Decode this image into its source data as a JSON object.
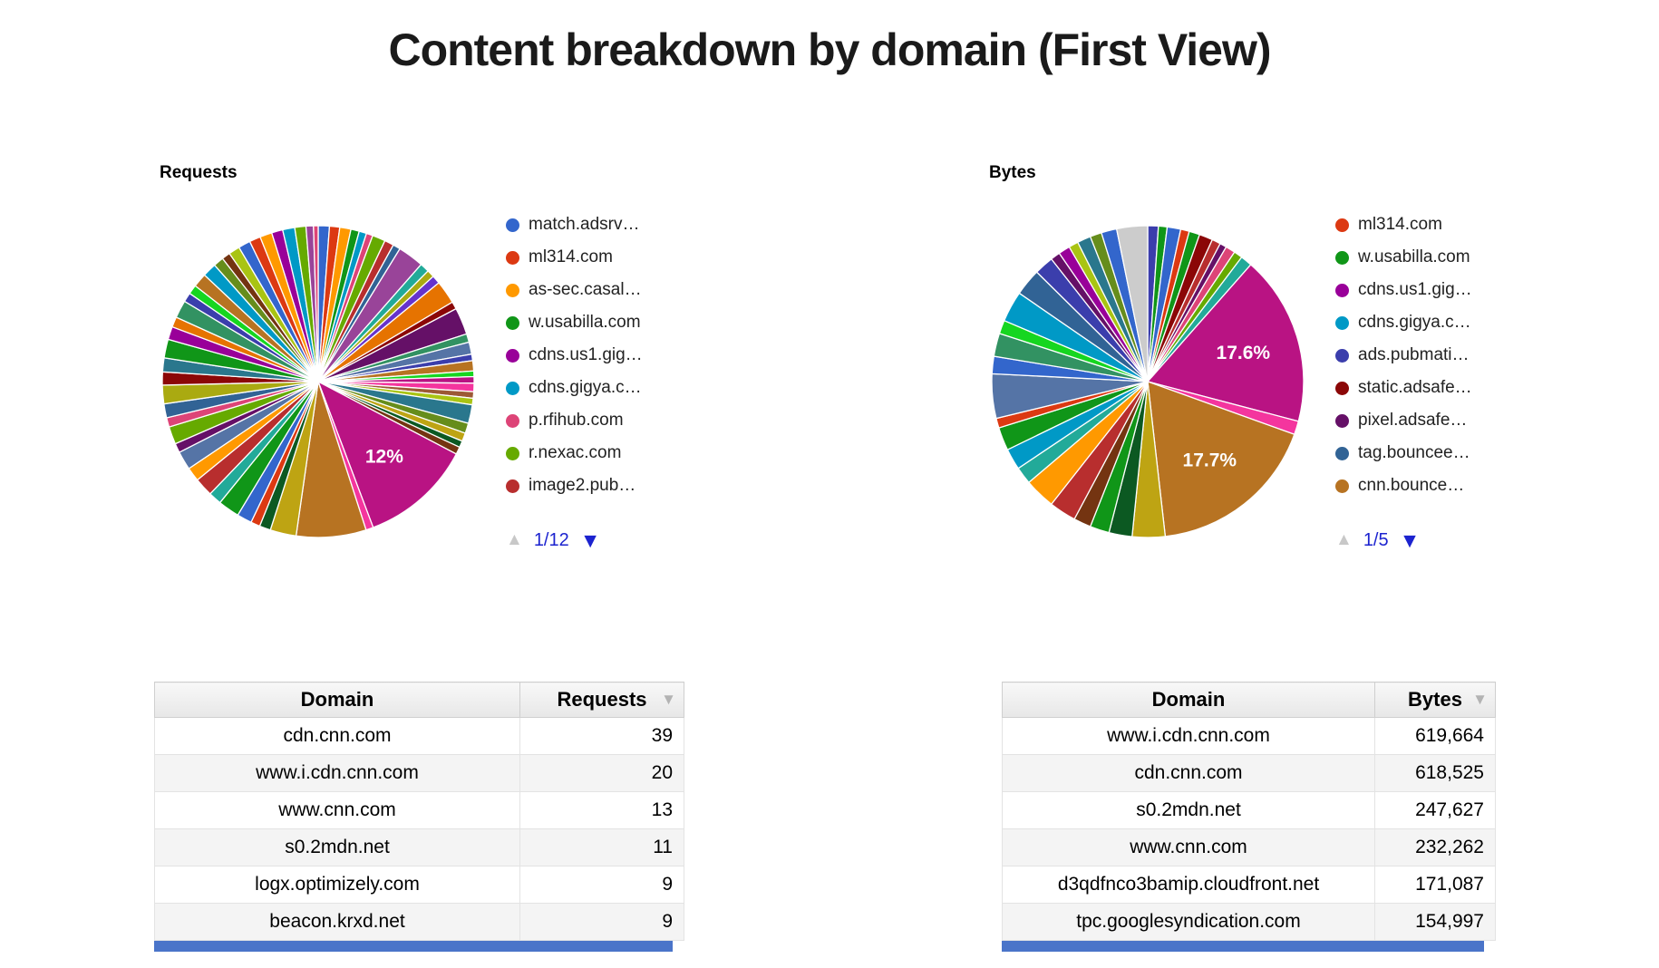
{
  "page": {
    "title": "Content breakdown by domain (First View)"
  },
  "icons": {
    "pager_up": "▲",
    "pager_down": "▼",
    "sort_desc": "▼"
  },
  "colors": {
    "pager_link": "#1c23cf",
    "pager_disabled": "#c8c8c8",
    "partial_row": "#4a74c9",
    "title_text": "#1a1a1a"
  },
  "chart_data": [
    {
      "type": "pie",
      "title": "Requests",
      "legend_position": "right",
      "legend_page": "1/12",
      "legend_entries": [
        {
          "label": "match.adsrv…",
          "color": "#3366cc"
        },
        {
          "label": "ml314.com",
          "color": "#dc3912"
        },
        {
          "label": "as-sec.casal…",
          "color": "#ff9900"
        },
        {
          "label": "w.usabilla.com",
          "color": "#109618"
        },
        {
          "label": "cdns.us1.gig…",
          "color": "#990099"
        },
        {
          "label": "cdns.gigya.c…",
          "color": "#0099c6"
        },
        {
          "label": "p.rfihub.com",
          "color": "#dd4477"
        },
        {
          "label": "r.nexac.com",
          "color": "#66aa00"
        },
        {
          "label": "image2.pub…",
          "color": "#b82e2e"
        }
      ],
      "labeled_values": [
        {
          "label": "12%",
          "value": 12
        }
      ],
      "slices": [
        {
          "v": 1.2,
          "c": "#3366cc"
        },
        {
          "v": 1.1,
          "c": "#dc3912"
        },
        {
          "v": 1.2,
          "c": "#ff9900"
        },
        {
          "v": 0.9,
          "c": "#109618"
        },
        {
          "v": 0.8,
          "c": "#0099c6"
        },
        {
          "v": 0.7,
          "c": "#dd4477"
        },
        {
          "v": 1.4,
          "c": "#66aa00"
        },
        {
          "v": 1.0,
          "c": "#b82e2e"
        },
        {
          "v": 0.8,
          "c": "#316395"
        },
        {
          "v": 2.8,
          "c": "#994499"
        },
        {
          "v": 1.0,
          "c": "#22aa99"
        },
        {
          "v": 0.8,
          "c": "#aaaa11"
        },
        {
          "v": 0.9,
          "c": "#6633cc"
        },
        {
          "v": 2.5,
          "c": "#e67300"
        },
        {
          "v": 0.8,
          "c": "#8b0707"
        },
        {
          "v": 2.9,
          "c": "#651067"
        },
        {
          "v": 0.9,
          "c": "#329262"
        },
        {
          "v": 1.3,
          "c": "#5574a6"
        },
        {
          "v": 0.7,
          "c": "#3b3eac"
        },
        {
          "v": 1.1,
          "c": "#b77322"
        },
        {
          "v": 0.6,
          "c": "#16d620"
        },
        {
          "v": 0.7,
          "c": "#b91383"
        },
        {
          "v": 0.9,
          "c": "#f4359e"
        },
        {
          "v": 0.7,
          "c": "#9c5935"
        },
        {
          "v": 0.7,
          "c": "#a9c413"
        },
        {
          "v": 2.0,
          "c": "#2a778d"
        },
        {
          "v": 1.1,
          "c": "#668d1c"
        },
        {
          "v": 0.9,
          "c": "#bea413"
        },
        {
          "v": 0.7,
          "c": "#0c5922"
        },
        {
          "v": 0.8,
          "c": "#743411"
        },
        {
          "v": 12,
          "c": "#b91383",
          "l": "12%"
        },
        {
          "v": 0.8,
          "c": "#f4359e"
        },
        {
          "v": 7.5,
          "c": "#b77322"
        },
        {
          "v": 2.8,
          "c": "#bea413"
        },
        {
          "v": 1.2,
          "c": "#0c5922"
        },
        {
          "v": 1.0,
          "c": "#dc3912"
        },
        {
          "v": 1.6,
          "c": "#3366cc"
        },
        {
          "v": 2.3,
          "c": "#109618"
        },
        {
          "v": 1.4,
          "c": "#22aa99"
        },
        {
          "v": 2.0,
          "c": "#b82e2e"
        },
        {
          "v": 1.5,
          "c": "#ff9900"
        },
        {
          "v": 2.0,
          "c": "#5574a6"
        },
        {
          "v": 1.0,
          "c": "#651067"
        },
        {
          "v": 1.9,
          "c": "#66aa00"
        },
        {
          "v": 1.0,
          "c": "#dd4477"
        },
        {
          "v": 1.5,
          "c": "#316395"
        },
        {
          "v": 2.0,
          "c": "#aaaa11"
        },
        {
          "v": 1.4,
          "c": "#8b0707"
        },
        {
          "v": 1.5,
          "c": "#2a778d"
        },
        {
          "v": 2.0,
          "c": "#109618"
        },
        {
          "v": 1.4,
          "c": "#990099"
        },
        {
          "v": 1.1,
          "c": "#e67300"
        },
        {
          "v": 1.9,
          "c": "#329262"
        },
        {
          "v": 1.0,
          "c": "#3b3eac"
        },
        {
          "v": 1.0,
          "c": "#16d620"
        },
        {
          "v": 1.5,
          "c": "#b77322"
        },
        {
          "v": 1.5,
          "c": "#0099c6"
        },
        {
          "v": 1.1,
          "c": "#668d1c"
        },
        {
          "v": 0.9,
          "c": "#743411"
        },
        {
          "v": 1.2,
          "c": "#a9c413"
        },
        {
          "v": 1.3,
          "c": "#3366cc"
        },
        {
          "v": 1.2,
          "c": "#dc3912"
        },
        {
          "v": 1.3,
          "c": "#ff9900"
        },
        {
          "v": 1.2,
          "c": "#990099"
        },
        {
          "v": 1.3,
          "c": "#0099c6"
        },
        {
          "v": 1.2,
          "c": "#66aa00"
        },
        {
          "v": 0.8,
          "c": "#994499"
        },
        {
          "v": 0.5,
          "c": "#dd4477"
        }
      ]
    },
    {
      "type": "pie",
      "title": "Bytes",
      "legend_position": "right",
      "legend_page": "1/5",
      "legend_entries": [
        {
          "label": "ml314.com",
          "color": "#dc3912"
        },
        {
          "label": "w.usabilla.com",
          "color": "#109618"
        },
        {
          "label": "cdns.us1.gig…",
          "color": "#990099"
        },
        {
          "label": "cdns.gigya.c…",
          "color": "#0099c6"
        },
        {
          "label": "ads.pubmati…",
          "color": "#3b3eac"
        },
        {
          "label": "static.adsafe…",
          "color": "#8b0707"
        },
        {
          "label": "pixel.adsafe…",
          "color": "#651067"
        },
        {
          "label": "tag.bouncee…",
          "color": "#316395"
        },
        {
          "label": "cnn.bounce…",
          "color": "#b77322"
        }
      ],
      "labeled_values": [
        {
          "label": "17.6%",
          "value": 17.6
        },
        {
          "label": "17.7%",
          "value": 17.7
        }
      ],
      "slices": [
        {
          "v": 1.1,
          "c": "#3b3eac"
        },
        {
          "v": 0.9,
          "c": "#109618"
        },
        {
          "v": 1.4,
          "c": "#3366cc"
        },
        {
          "v": 0.9,
          "c": "#dc3912"
        },
        {
          "v": 1.1,
          "c": "#109618"
        },
        {
          "v": 1.4,
          "c": "#8b0707"
        },
        {
          "v": 0.9,
          "c": "#b82e2e"
        },
        {
          "v": 0.7,
          "c": "#651067"
        },
        {
          "v": 1.0,
          "c": "#dd4477"
        },
        {
          "v": 0.9,
          "c": "#66aa00"
        },
        {
          "v": 1.2,
          "c": "#22aa99"
        },
        {
          "v": 17.6,
          "c": "#b91383",
          "l": "17.6%"
        },
        {
          "v": 1.4,
          "c": "#f4359e"
        },
        {
          "v": 17.7,
          "c": "#b77322",
          "l": "17.7%"
        },
        {
          "v": 3.4,
          "c": "#bea413"
        },
        {
          "v": 2.4,
          "c": "#0c5922"
        },
        {
          "v": 2.0,
          "c": "#109618"
        },
        {
          "v": 1.8,
          "c": "#743411"
        },
        {
          "v": 2.8,
          "c": "#b82e2e"
        },
        {
          "v": 3.2,
          "c": "#ff9900"
        },
        {
          "v": 1.8,
          "c": "#22aa99"
        },
        {
          "v": 2.2,
          "c": "#0099c6"
        },
        {
          "v": 2.4,
          "c": "#109618"
        },
        {
          "v": 1.0,
          "c": "#dc3912"
        },
        {
          "v": 4.6,
          "c": "#5574a6"
        },
        {
          "v": 1.8,
          "c": "#3366cc"
        },
        {
          "v": 2.4,
          "c": "#329262"
        },
        {
          "v": 1.4,
          "c": "#16d620"
        },
        {
          "v": 3.2,
          "c": "#0099c6"
        },
        {
          "v": 2.8,
          "c": "#316395"
        },
        {
          "v": 2.0,
          "c": "#3b3eac"
        },
        {
          "v": 1.0,
          "c": "#651067"
        },
        {
          "v": 1.2,
          "c": "#990099"
        },
        {
          "v": 1.0,
          "c": "#a9c413"
        },
        {
          "v": 1.4,
          "c": "#2a778d"
        },
        {
          "v": 1.2,
          "c": "#668d1c"
        },
        {
          "v": 1.6,
          "c": "#3366cc"
        },
        {
          "v": 3.2,
          "c": "#cccccc"
        }
      ]
    },
    {
      "type": "table",
      "columns": [
        {
          "label": "Domain",
          "sorted": false
        },
        {
          "label": "Requests",
          "sorted": true
        }
      ],
      "rows": [
        [
          "cdn.cnn.com",
          "39"
        ],
        [
          "www.i.cdn.cnn.com",
          "20"
        ],
        [
          "www.cnn.com",
          "13"
        ],
        [
          "s0.2mdn.net",
          "11"
        ],
        [
          "logx.optimizely.com",
          "9"
        ],
        [
          "beacon.krxd.net",
          "9"
        ]
      ]
    },
    {
      "type": "table",
      "columns": [
        {
          "label": "Domain",
          "sorted": false
        },
        {
          "label": "Bytes",
          "sorted": true
        }
      ],
      "rows": [
        [
          "www.i.cdn.cnn.com",
          "619,664"
        ],
        [
          "cdn.cnn.com",
          "618,525"
        ],
        [
          "s0.2mdn.net",
          "247,627"
        ],
        [
          "www.cnn.com",
          "232,262"
        ],
        [
          "d3qdfnco3bamip.cloudfront.net",
          "171,087"
        ],
        [
          "tpc.googlesyndication.com",
          "154,997"
        ]
      ]
    }
  ]
}
